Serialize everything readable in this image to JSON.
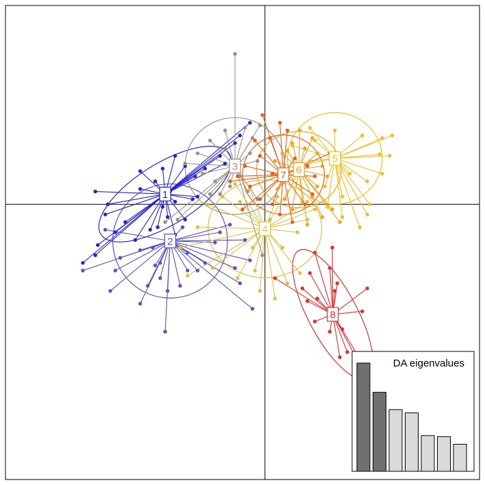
{
  "chart_data": {
    "type": "scatter",
    "title": "",
    "xlabel": "",
    "ylabel": "",
    "xlim": [
      -5.2,
      4.3
    ],
    "ylim": [
      -5.4,
      3.9
    ],
    "axes_cross_at": [
      0,
      0
    ],
    "grid": false,
    "groups": [
      {
        "label": "1",
        "color": "#2323d6",
        "centroid": [
          -2.0,
          0.2
        ],
        "ellipse": {
          "rx": 1.52,
          "ry": 0.6,
          "angle_deg": 32
        },
        "points": [
          [
            -3.4,
            -1.0
          ],
          [
            -3.65,
            -1.15
          ],
          [
            -3.35,
            -0.8
          ],
          [
            -3.0,
            -0.55
          ],
          [
            -2.8,
            -0.35
          ],
          [
            -3.2,
            -0.2
          ],
          [
            -3.15,
            0.0
          ],
          [
            -3.4,
            0.25
          ],
          [
            -2.5,
            0.3
          ],
          [
            -2.2,
            0.45
          ],
          [
            -2.5,
            0.65
          ],
          [
            -2.05,
            0.7
          ],
          [
            -1.8,
            0.95
          ],
          [
            -1.6,
            0.75
          ],
          [
            -1.4,
            0.55
          ],
          [
            -1.2,
            0.7
          ],
          [
            -0.9,
            0.95
          ],
          [
            -0.6,
            1.2
          ],
          [
            -0.3,
            1.6
          ],
          [
            -0.5,
            1.35
          ],
          [
            -0.8,
            0.8
          ],
          [
            -1.45,
            0.1
          ],
          [
            -1.8,
            0.05
          ],
          [
            -1.95,
            -0.25
          ],
          [
            -2.3,
            -0.5
          ],
          [
            -2.6,
            -0.7
          ],
          [
            -2.15,
            -0.45
          ],
          [
            -1.8,
            -0.6
          ],
          [
            -1.35,
            0.15
          ],
          [
            -1.6,
            -0.3
          ],
          [
            -1.9,
            0.25
          ],
          [
            -2.05,
            -0.05
          ]
        ]
      },
      {
        "label": "2",
        "color": "#5a50c8",
        "centroid": [
          -1.9,
          -0.72
        ],
        "ellipse": {
          "rx": 1.15,
          "ry": 1.12,
          "angle_deg": 0
        },
        "points": [
          [
            -3.65,
            -1.3
          ],
          [
            -3.1,
            -1.7
          ],
          [
            -3.0,
            -1.3
          ],
          [
            -2.9,
            -1.05
          ],
          [
            -2.5,
            -0.9
          ],
          [
            -2.25,
            -0.85
          ],
          [
            -2.2,
            -1.2
          ],
          [
            -2.1,
            -1.45
          ],
          [
            -2.35,
            -1.6
          ],
          [
            -1.95,
            -1.7
          ],
          [
            -1.7,
            -1.6
          ],
          [
            -1.55,
            -1.3
          ],
          [
            -1.35,
            -1.3
          ],
          [
            -1.2,
            -1.15
          ],
          [
            -1.55,
            -0.95
          ],
          [
            -1.0,
            -0.75
          ],
          [
            -0.9,
            -0.55
          ],
          [
            -0.7,
            -0.4
          ],
          [
            -0.4,
            -0.7
          ],
          [
            -0.3,
            -1.1
          ],
          [
            -0.6,
            -1.25
          ],
          [
            -0.5,
            -1.55
          ],
          [
            -0.25,
            -2.05
          ],
          [
            -2.0,
            -2.5
          ],
          [
            -2.5,
            -1.95
          ],
          [
            -3.2,
            -0.5
          ],
          [
            -1.65,
            -0.45
          ],
          [
            -2.1,
            -1.15
          ]
        ]
      },
      {
        "label": "3",
        "color": "#9c8f86",
        "centroid": [
          -0.6,
          0.75
        ],
        "ellipse": {
          "rx": 1.0,
          "ry": 0.95,
          "angle_deg": 0
        },
        "points": [
          [
            -0.6,
            2.95
          ],
          [
            -1.1,
            1.25
          ],
          [
            -0.8,
            1.45
          ],
          [
            -0.4,
            1.5
          ],
          [
            -0.25,
            1.3
          ],
          [
            -0.1,
            1.55
          ],
          [
            -0.3,
            1.0
          ],
          [
            -1.35,
            1.0
          ],
          [
            -1.6,
            0.8
          ],
          [
            -1.25,
            0.6
          ],
          [
            -1.0,
            0.45
          ],
          [
            -0.9,
            0.2
          ],
          [
            -0.7,
            0.35
          ],
          [
            -0.5,
            0.55
          ],
          [
            -0.35,
            0.25
          ],
          [
            -0.15,
            0.1
          ],
          [
            -0.05,
            -1.0
          ],
          [
            -1.1,
            0.2
          ],
          [
            -1.75,
            -0.3
          ],
          [
            -2.0,
            -0.35
          ],
          [
            -0.15,
            0.85
          ],
          [
            -0.8,
            1.1
          ]
        ]
      },
      {
        "label": "4",
        "color": "#e0c040",
        "centroid": [
          0.0,
          -0.48
        ],
        "ellipse": {
          "rx": 1.14,
          "ry": 0.96,
          "angle_deg": 0
        },
        "points": [
          [
            -0.6,
            0.4
          ],
          [
            -1.15,
            0.0
          ],
          [
            -1.35,
            -0.45
          ],
          [
            -1.7,
            -0.85
          ],
          [
            -1.05,
            -1.25
          ],
          [
            -1.55,
            -1.4
          ],
          [
            -0.55,
            -1.45
          ],
          [
            -0.2,
            -1.3
          ],
          [
            -0.1,
            -1.7
          ],
          [
            0.2,
            -1.85
          ],
          [
            0.45,
            -1.55
          ],
          [
            0.7,
            -1.35
          ],
          [
            0.35,
            -0.85
          ],
          [
            0.65,
            -0.55
          ],
          [
            0.85,
            -0.3
          ],
          [
            1.0,
            -0.1
          ],
          [
            0.85,
            0.05
          ],
          [
            0.45,
            0.25
          ],
          [
            0.25,
            0.15
          ],
          [
            -0.3,
            0.3
          ],
          [
            -0.5,
            0.05
          ],
          [
            -0.85,
            0.15
          ],
          [
            0.1,
            -0.3
          ],
          [
            -0.25,
            -0.85
          ]
        ]
      },
      {
        "label": "5",
        "color": "#f5bd1f",
        "centroid": [
          1.4,
          0.9
        ],
        "ellipse": {
          "rx": 0.95,
          "ry": 0.9,
          "angle_deg": 0
        },
        "points": [
          [
            1.95,
            1.35
          ],
          [
            2.35,
            1.3
          ],
          [
            2.55,
            1.35
          ],
          [
            2.3,
            0.98
          ],
          [
            2.5,
            0.95
          ],
          [
            2.35,
            0.6
          ],
          [
            2.05,
            0.45
          ],
          [
            2.1,
            0.0
          ],
          [
            2.05,
            -0.2
          ],
          [
            1.9,
            -0.45
          ],
          [
            1.55,
            -0.25
          ],
          [
            1.25,
            -0.05
          ],
          [
            1.2,
            0.35
          ],
          [
            1.55,
            0.15
          ],
          [
            0.9,
            0.85
          ],
          [
            0.65,
            0.75
          ],
          [
            0.55,
            1.15
          ],
          [
            1.0,
            1.25
          ],
          [
            1.4,
            1.45
          ],
          [
            0.9,
            1.5
          ],
          [
            1.7,
            0.6
          ]
        ]
      },
      {
        "label": "6",
        "color": "#f2a21c",
        "centroid": [
          0.68,
          0.68
        ],
        "ellipse": {
          "rx": 0.85,
          "ry": 0.75,
          "angle_deg": 0
        },
        "points": [
          [
            0.2,
            0.85
          ],
          [
            0.35,
            1.0
          ],
          [
            0.45,
            1.05
          ],
          [
            0.55,
            1.2
          ],
          [
            0.8,
            1.1
          ],
          [
            1.05,
            1.0
          ],
          [
            1.15,
            0.75
          ],
          [
            1.25,
            0.55
          ],
          [
            1.05,
            0.35
          ],
          [
            0.95,
            0.15
          ],
          [
            0.75,
            0.05
          ],
          [
            0.55,
            -0.1
          ],
          [
            0.4,
            0.1
          ],
          [
            0.25,
            0.3
          ],
          [
            1.35,
            -0.1
          ],
          [
            1.5,
            -0.35
          ],
          [
            1.15,
            -0.25
          ],
          [
            0.85,
            -0.4
          ],
          [
            0.95,
            1.3
          ],
          [
            0.7,
            1.45
          ]
        ]
      },
      {
        "label": "7",
        "color": "#ee5c14",
        "centroid": [
          0.37,
          0.58
        ],
        "ellipse": {
          "rx": 0.82,
          "ry": 0.78,
          "angle_deg": 0
        },
        "points": [
          [
            -0.05,
            1.75
          ],
          [
            0.3,
            1.6
          ],
          [
            0.45,
            1.45
          ],
          [
            0.1,
            1.3
          ],
          [
            -0.2,
            1.25
          ],
          [
            -0.1,
            0.95
          ],
          [
            -0.4,
            0.75
          ],
          [
            -0.55,
            0.55
          ],
          [
            -0.7,
            0.45
          ],
          [
            -0.3,
            0.35
          ],
          [
            -0.1,
            0.1
          ],
          [
            0.15,
            0.0
          ],
          [
            0.3,
            -0.2
          ],
          [
            0.55,
            -0.35
          ],
          [
            0.8,
            0.0
          ],
          [
            0.95,
            0.2
          ],
          [
            1.0,
            0.55
          ],
          [
            0.85,
            0.75
          ],
          [
            0.6,
            0.9
          ],
          [
            0.15,
            0.6
          ],
          [
            1.3,
            1.0
          ],
          [
            -0.45,
            -0.1
          ]
        ]
      },
      {
        "label": "8",
        "color": "#e82b2b",
        "centroid": [
          1.36,
          -2.16
        ],
        "ellipse": {
          "rx": 1.45,
          "ry": 0.48,
          "angle_deg": -62
        },
        "points": [
          [
            1.0,
            -0.95
          ],
          [
            1.35,
            -0.85
          ],
          [
            1.3,
            -1.25
          ],
          [
            1.45,
            -1.55
          ],
          [
            0.9,
            -1.35
          ],
          [
            0.75,
            -1.65
          ],
          [
            0.85,
            -1.9
          ],
          [
            1.05,
            -1.85
          ],
          [
            1.4,
            -1.7
          ],
          [
            0.2,
            -1.45
          ],
          [
            2.05,
            -1.65
          ],
          [
            1.95,
            -2.1
          ],
          [
            1.55,
            -2.45
          ],
          [
            1.65,
            -2.9
          ],
          [
            1.85,
            -3.05
          ],
          [
            2.1,
            -3.35
          ],
          [
            1.5,
            -3.0
          ],
          [
            1.3,
            -2.5
          ],
          [
            1.0,
            -2.3
          ]
        ]
      }
    ]
  },
  "inset": {
    "title": "DA eigenvalues",
    "eigenvalues": [
      1.0,
      0.73,
      0.57,
      0.54,
      0.33,
      0.32,
      0.25
    ],
    "retained": 2,
    "retained_color": "#707070",
    "other_color": "#dadada"
  }
}
